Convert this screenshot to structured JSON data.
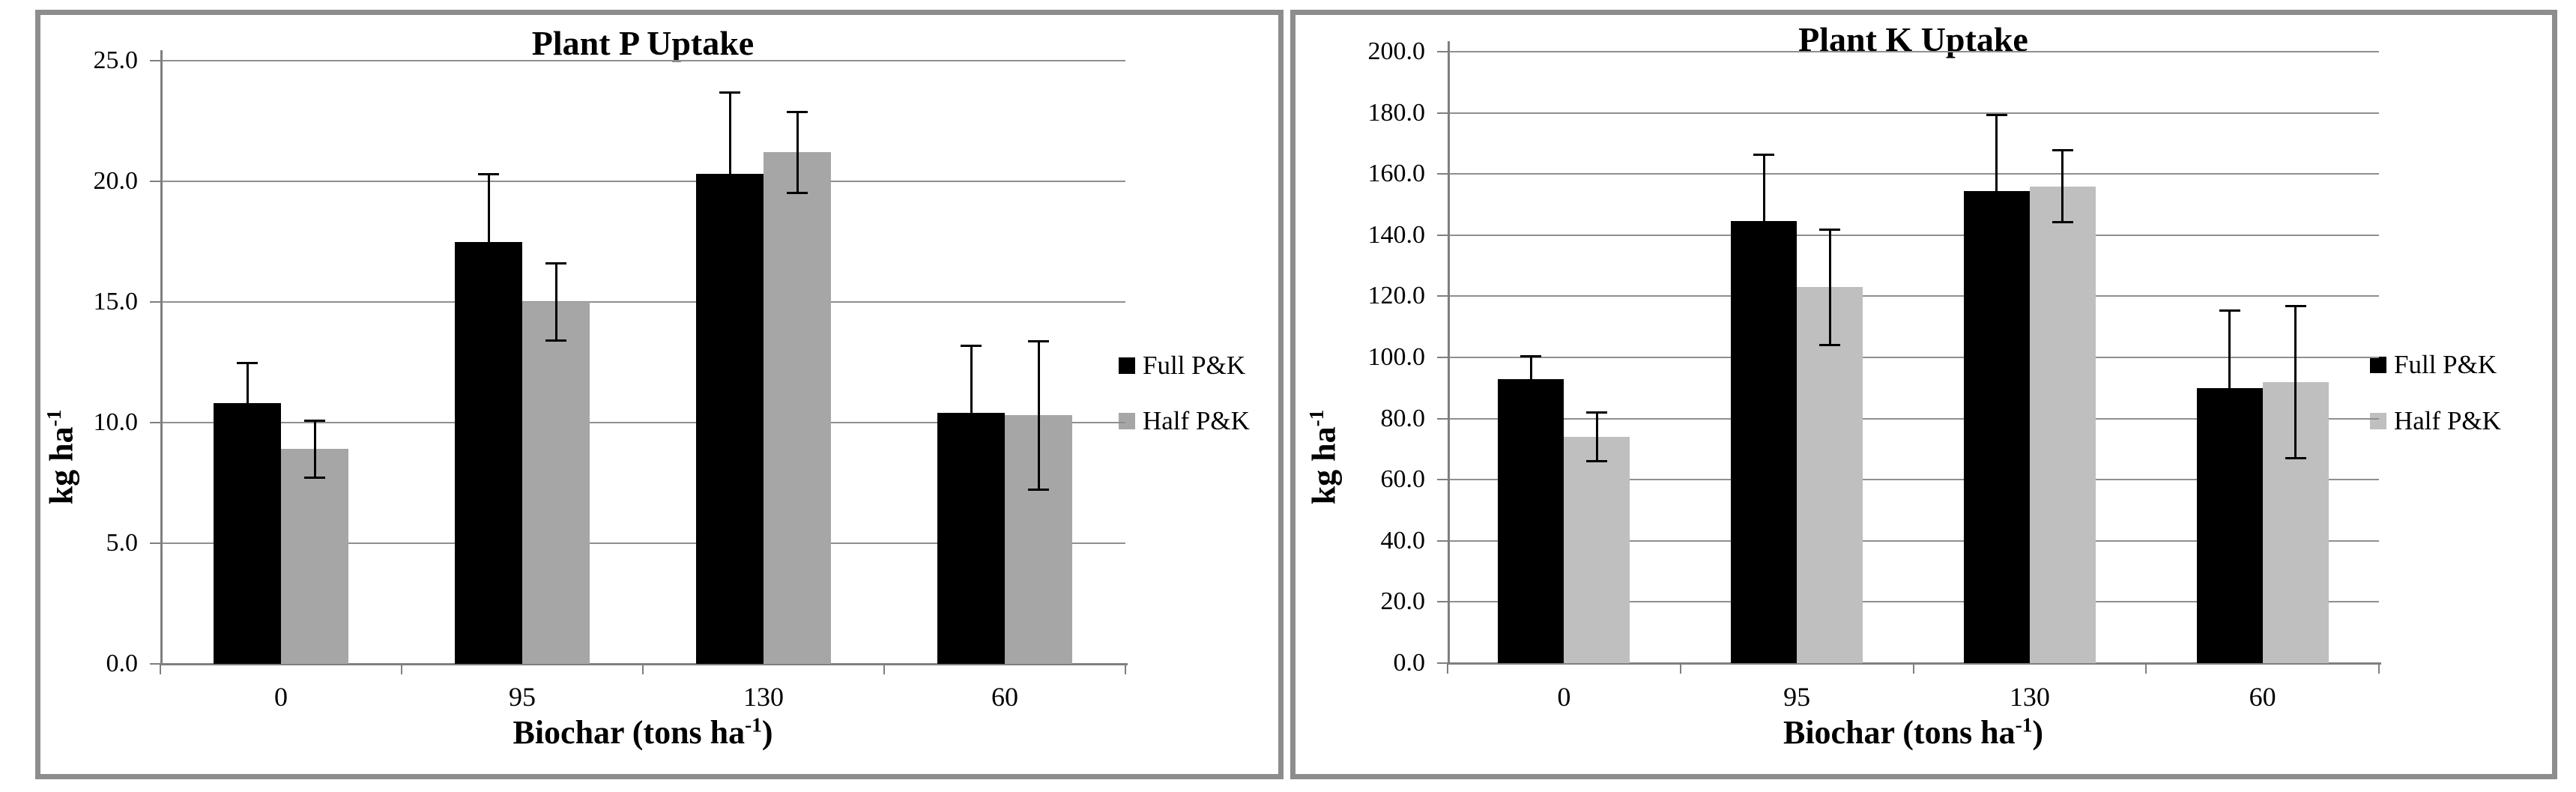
{
  "style": {
    "background": "#ffffff",
    "panel_border_color": "#8d8d8d",
    "grid_color": "#8f8f8f",
    "axis_color": "#7f7f7f",
    "error_bar_color": "#000000",
    "full_pk_color": "#000000",
    "half_pk_color_left": "#a6a6a6",
    "half_pk_color_right": "#bfbfbf"
  },
  "chart_data": [
    {
      "type": "bar",
      "title": "Plant P Uptake",
      "ylabel_base": "kg ha",
      "ylabel_sup": "-1",
      "xlabel_base": "Biochar (tons ha",
      "xlabel_sup": "-1",
      "xlabel_close": ")",
      "categories": [
        "0",
        "95",
        "130",
        "60"
      ],
      "series": [
        {
          "name": "Full P&K",
          "color": "#000000",
          "values": [
            10.8,
            17.5,
            20.3,
            10.4
          ],
          "errors": [
            1.7,
            2.8,
            3.4,
            2.8
          ]
        },
        {
          "name": "Half P&K",
          "color": "#a6a6a6",
          "values": [
            8.9,
            15.0,
            21.2,
            10.3
          ],
          "errors": [
            1.2,
            1.6,
            1.7,
            3.1
          ]
        }
      ],
      "ylim": [
        0,
        25
      ],
      "ytick_step": 5,
      "ytick_labels": [
        "0.0",
        "5.0",
        "10.0",
        "15.0",
        "20.0",
        "25.0"
      ],
      "grid": true,
      "legend_position": "right"
    },
    {
      "type": "bar",
      "title": "Plant K Uptake",
      "ylabel_base": "kg ha",
      "ylabel_sup": "-1",
      "xlabel_base": "Biochar (tons ha",
      "xlabel_sup": "-1",
      "xlabel_close": ")",
      "categories": [
        "0",
        "95",
        "130",
        "60"
      ],
      "series": [
        {
          "name": "Full P&K",
          "color": "#000000",
          "values": [
            93,
            144.5,
            154.5,
            90
          ],
          "errors": [
            7.5,
            22,
            25,
            25.5
          ]
        },
        {
          "name": "Half P&K",
          "color": "#bfbfbf",
          "values": [
            74,
            123,
            156,
            92
          ],
          "errors": [
            8,
            19,
            12,
            25
          ]
        }
      ],
      "ylim": [
        0,
        200
      ],
      "ytick_step": 20,
      "ytick_labels": [
        "0.0",
        "20.0",
        "40.0",
        "60.0",
        "80.0",
        "100.0",
        "120.0",
        "140.0",
        "160.0",
        "180.0",
        "200.0"
      ],
      "grid": true,
      "legend_position": "right"
    }
  ]
}
